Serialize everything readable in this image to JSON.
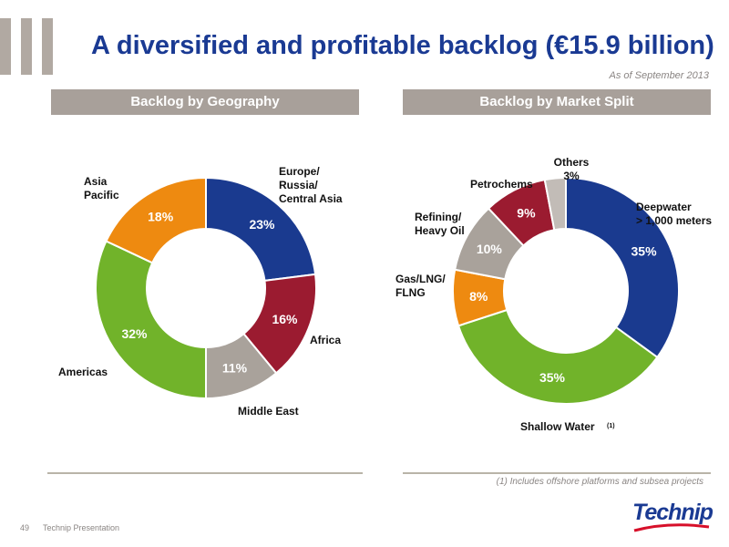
{
  "title": "A diversified and profitable backlog (€15.9 billion)",
  "subtitle": "As of September 2013",
  "footnote": "(1) Includes offshore platforms and subsea projects",
  "footer": {
    "page_number": "49",
    "label": "Technip Presentation"
  },
  "logo_text": "Technip",
  "colors": {
    "brand_blue": "#1a3a93",
    "header_gray": "#a8a09a"
  },
  "chart_data": [
    {
      "type": "pie",
      "title": "Backlog by Geography",
      "slices": [
        {
          "name": "Europe/ Russia/ Central Asia",
          "label_lines": [
            "Europe/",
            "Russia/",
            "Central Asia"
          ],
          "value": 23,
          "pct_label": "23%",
          "color": "#1a3a8f"
        },
        {
          "name": "Africa",
          "label_lines": [
            "Africa"
          ],
          "value": 16,
          "pct_label": "16%",
          "color": "#9b1b30"
        },
        {
          "name": "Middle East",
          "label_lines": [
            "Middle East"
          ],
          "value": 11,
          "pct_label": "11%",
          "color": "#a9a29b"
        },
        {
          "name": "Americas",
          "label_lines": [
            "Americas"
          ],
          "value": 32,
          "pct_label": "32%",
          "color": "#71b32a"
        },
        {
          "name": "Asia Pacific",
          "label_lines": [
            "Asia",
            "Pacific"
          ],
          "value": 18,
          "pct_label": "18%",
          "color": "#ee8a10"
        }
      ]
    },
    {
      "type": "pie",
      "title": "Backlog by Market Split",
      "slices": [
        {
          "name": "Deepwater > 1,000 meters",
          "label_lines": [
            "Deepwater",
            "> 1,000 meters"
          ],
          "value": 35,
          "pct_label": "35%",
          "color": "#1a3a8f"
        },
        {
          "name": "Shallow Water (1)",
          "label_lines": [
            "Shallow Water"
          ],
          "label_note": "(1)",
          "value": 35,
          "pct_label": "35%",
          "color": "#71b32a"
        },
        {
          "name": "Gas/LNG/ FLNG",
          "label_lines": [
            "Gas/LNG/",
            "FLNG"
          ],
          "value": 8,
          "pct_label": "8%",
          "color": "#ee8a10"
        },
        {
          "name": "Refining/ Heavy Oil",
          "label_lines": [
            "Refining/",
            "Heavy Oil"
          ],
          "value": 10,
          "pct_label": "10%",
          "color": "#a9a29b"
        },
        {
          "name": "Petrochems",
          "label_lines": [
            "Petrochems"
          ],
          "value": 9,
          "pct_label": "9%",
          "color": "#9b1b30"
        },
        {
          "name": "Others",
          "label_lines": [
            "Others",
            "3%"
          ],
          "value": 3,
          "pct_label": "",
          "color": "#c2bcb7"
        }
      ]
    }
  ]
}
